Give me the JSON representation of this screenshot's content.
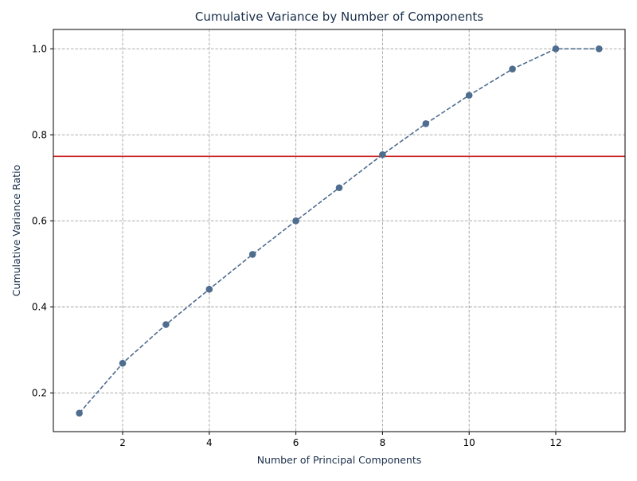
{
  "chart_data": {
    "type": "line",
    "title": "Cumulative Variance by Number of Components",
    "xlabel": "Number of Principal Components",
    "ylabel": "Cumulative Variance Ratio",
    "xlim": [
      0.4,
      13.6
    ],
    "ylim": [
      0.11,
      1.045
    ],
    "x_ticks": [
      2,
      4,
      6,
      8,
      10,
      12
    ],
    "y_ticks": [
      0.2,
      0.4,
      0.6,
      0.8,
      1.0
    ],
    "x_tick_labels": [
      "2",
      "4",
      "6",
      "8",
      "10",
      "12"
    ],
    "y_tick_labels": [
      "0.2",
      "0.4",
      "0.6",
      "0.8",
      "1.0"
    ],
    "grid": true,
    "series": [
      {
        "x": [
          1,
          2,
          3,
          4,
          5,
          6,
          7,
          8,
          9,
          10,
          11,
          12,
          13
        ],
        "values": [
          0.153,
          0.269,
          0.359,
          0.441,
          0.522,
          0.6,
          0.677,
          0.754,
          0.826,
          0.892,
          0.953,
          1.0,
          1.0
        ],
        "color": "#4f6d8f",
        "line_style": "dashed",
        "marker": "circle"
      }
    ],
    "threshold": {
      "y": 0.75,
      "color": "#cc2222"
    }
  },
  "colors": {
    "title": "#1a2f4a",
    "axis_title": "#1a2f4a",
    "grid": "#a0a0a0"
  }
}
